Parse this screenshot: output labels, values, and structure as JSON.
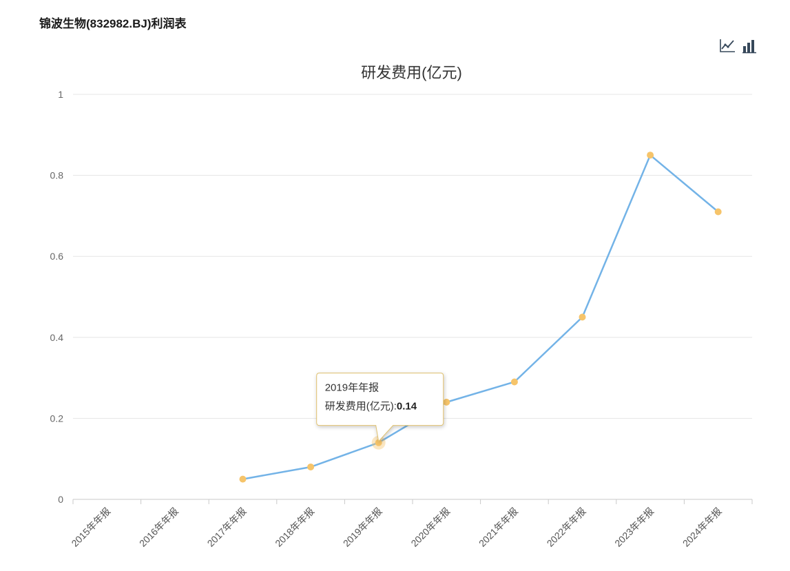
{
  "page": {
    "title": "锦波生物(832982.BJ)利润表"
  },
  "toolbar": {
    "icons": [
      {
        "name": "line-chart-icon"
      },
      {
        "name": "bar-chart-icon"
      }
    ]
  },
  "chart_data": {
    "type": "line",
    "title": "研发费用(亿元)",
    "categories": [
      "2015年年报",
      "2016年年报",
      "2017年年报",
      "2018年年报",
      "2019年年报",
      "2020年年报",
      "2021年年报",
      "2022年年报",
      "2023年年报",
      "2024年年报"
    ],
    "values": [
      null,
      null,
      0.05,
      0.08,
      0.14,
      0.24,
      0.29,
      0.45,
      0.85,
      0.71
    ],
    "ylim": [
      0,
      1
    ],
    "yticks": [
      0,
      0.2,
      0.4,
      0.6,
      0.8,
      1
    ],
    "xlabel": "",
    "ylabel": "",
    "grid": true,
    "legend_position": "none",
    "colors": {
      "line": "#73b3e7",
      "point": "#f6c46a",
      "tooltip_border": "#dfc06d",
      "gridline": "#e5e5e5",
      "axis": "#c9c9c9",
      "tick_label": "#666666"
    },
    "tooltip": {
      "index": 4,
      "category": "2019年年报",
      "label": "研发费用(亿元):",
      "value": "0.14"
    }
  }
}
